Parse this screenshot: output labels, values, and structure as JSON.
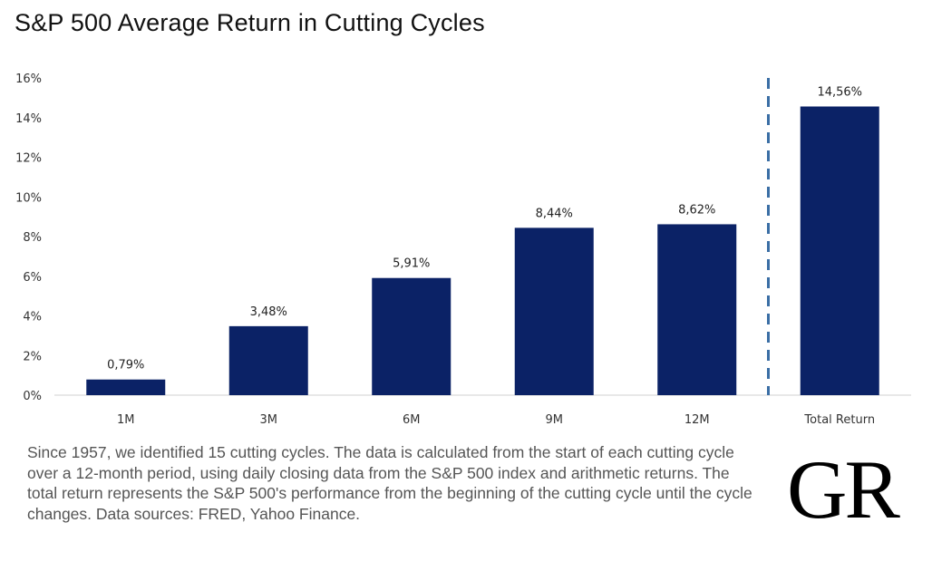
{
  "title": "S&P 500 Average Return in Cutting Cycles",
  "chart_data": {
    "type": "bar",
    "categories": [
      "1M",
      "3M",
      "6M",
      "9M",
      "12M",
      "Total Return"
    ],
    "values": [
      0.79,
      3.48,
      5.91,
      8.44,
      8.62,
      14.56
    ],
    "data_labels": [
      "0,79%",
      "3,48%",
      "5,91%",
      "8,44%",
      "8,62%",
      "14,56%"
    ],
    "yticks": [
      "0%",
      "2%",
      "4%",
      "6%",
      "8%",
      "10%",
      "12%",
      "14%",
      "16%"
    ],
    "ylim": [
      0,
      16
    ],
    "bar_color": "#0b2266",
    "divider_color": "#3a6ea5",
    "grid": false
  },
  "note": "Since 1957, we identified 15 cutting cycles. The data is calculated from the start of each cutting cycle over a 12-month period, using daily closing data from the S&P 500 index and arithmetic returns. The total return represents the S&P 500's performance from the beginning of the cutting cycle until the cycle changes. Data sources: FRED, Yahoo Finance.",
  "logo": "GR"
}
